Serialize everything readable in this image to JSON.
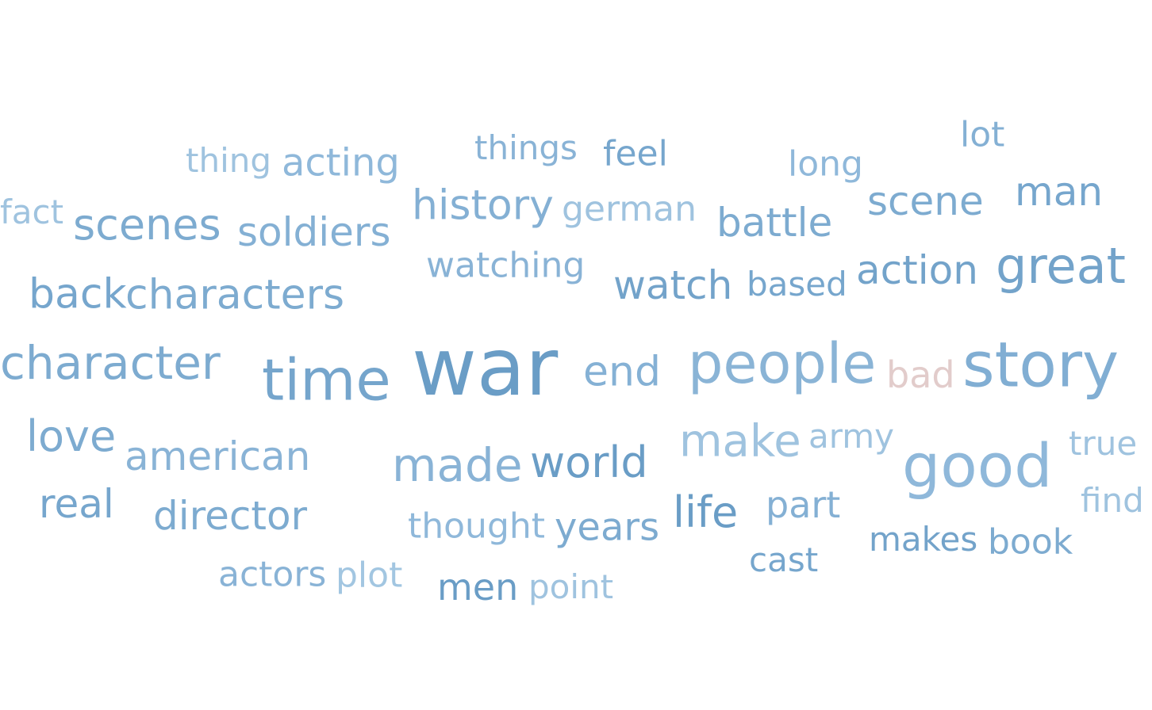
{
  "words": [
    {
      "text": "war",
      "color": "#6a9dc6"
    },
    {
      "text": "story",
      "color": "#81aed3"
    },
    {
      "text": "good",
      "color": "#8fb8da"
    },
    {
      "text": "people",
      "color": "#8ab4d6"
    },
    {
      "text": "time",
      "color": "#75a5cc"
    },
    {
      "text": "great",
      "color": "#73a3ca"
    },
    {
      "text": "character",
      "color": "#7dabd0"
    },
    {
      "text": "characters",
      "color": "#7dabd0"
    },
    {
      "text": "back",
      "color": "#76a6cd"
    },
    {
      "text": "scenes",
      "color": "#7dabd0"
    },
    {
      "text": "soldiers",
      "color": "#84b0d4"
    },
    {
      "text": "history",
      "color": "#84b0d4"
    },
    {
      "text": "end",
      "color": "#85b1d5"
    },
    {
      "text": "made",
      "color": "#89b3d6"
    },
    {
      "text": "world",
      "color": "#6a9dc6"
    },
    {
      "text": "make",
      "color": "#9fc3df"
    },
    {
      "text": "love",
      "color": "#7dabd0"
    },
    {
      "text": "american",
      "color": "#89b3d6"
    },
    {
      "text": "bad",
      "color": "#e2cccb"
    },
    {
      "text": "action",
      "color": "#73a3ca"
    },
    {
      "text": "watch",
      "color": "#73a3ca"
    },
    {
      "text": "scene",
      "color": "#7dabd0"
    },
    {
      "text": "man",
      "color": "#76a6cd"
    },
    {
      "text": "battle",
      "color": "#7dabd0"
    },
    {
      "text": "acting",
      "color": "#8fb8da"
    },
    {
      "text": "life",
      "color": "#6a9dc6"
    },
    {
      "text": "director",
      "color": "#7dabd0"
    },
    {
      "text": "real",
      "color": "#76a6cd"
    },
    {
      "text": "years",
      "color": "#7dabd0"
    },
    {
      "text": "thought",
      "color": "#8fb8da"
    },
    {
      "text": "german",
      "color": "#9fc3df"
    },
    {
      "text": "watching",
      "color": "#89b3d6"
    },
    {
      "text": "based",
      "color": "#76a6cd"
    },
    {
      "text": "part",
      "color": "#84b0d4"
    },
    {
      "text": "army",
      "color": "#9fc3df"
    },
    {
      "text": "true",
      "color": "#9fc3df"
    },
    {
      "text": "men",
      "color": "#6a9dc6"
    },
    {
      "text": "point",
      "color": "#9fc3df"
    },
    {
      "text": "actors",
      "color": "#89b3d6"
    },
    {
      "text": "plot",
      "color": "#a2c6e1"
    },
    {
      "text": "makes",
      "color": "#73a3ca"
    },
    {
      "text": "book",
      "color": "#7dabd0"
    },
    {
      "text": "cast",
      "color": "#76a6cd"
    },
    {
      "text": "find",
      "color": "#9fc3df"
    },
    {
      "text": "fact",
      "color": "#9fc3df"
    },
    {
      "text": "thing",
      "color": "#9fc3df"
    },
    {
      "text": "things",
      "color": "#89b3d6"
    },
    {
      "text": "feel",
      "color": "#76a6cd"
    },
    {
      "text": "long",
      "color": "#8fb8da"
    },
    {
      "text": "lot",
      "color": "#84b0d4"
    }
  ]
}
